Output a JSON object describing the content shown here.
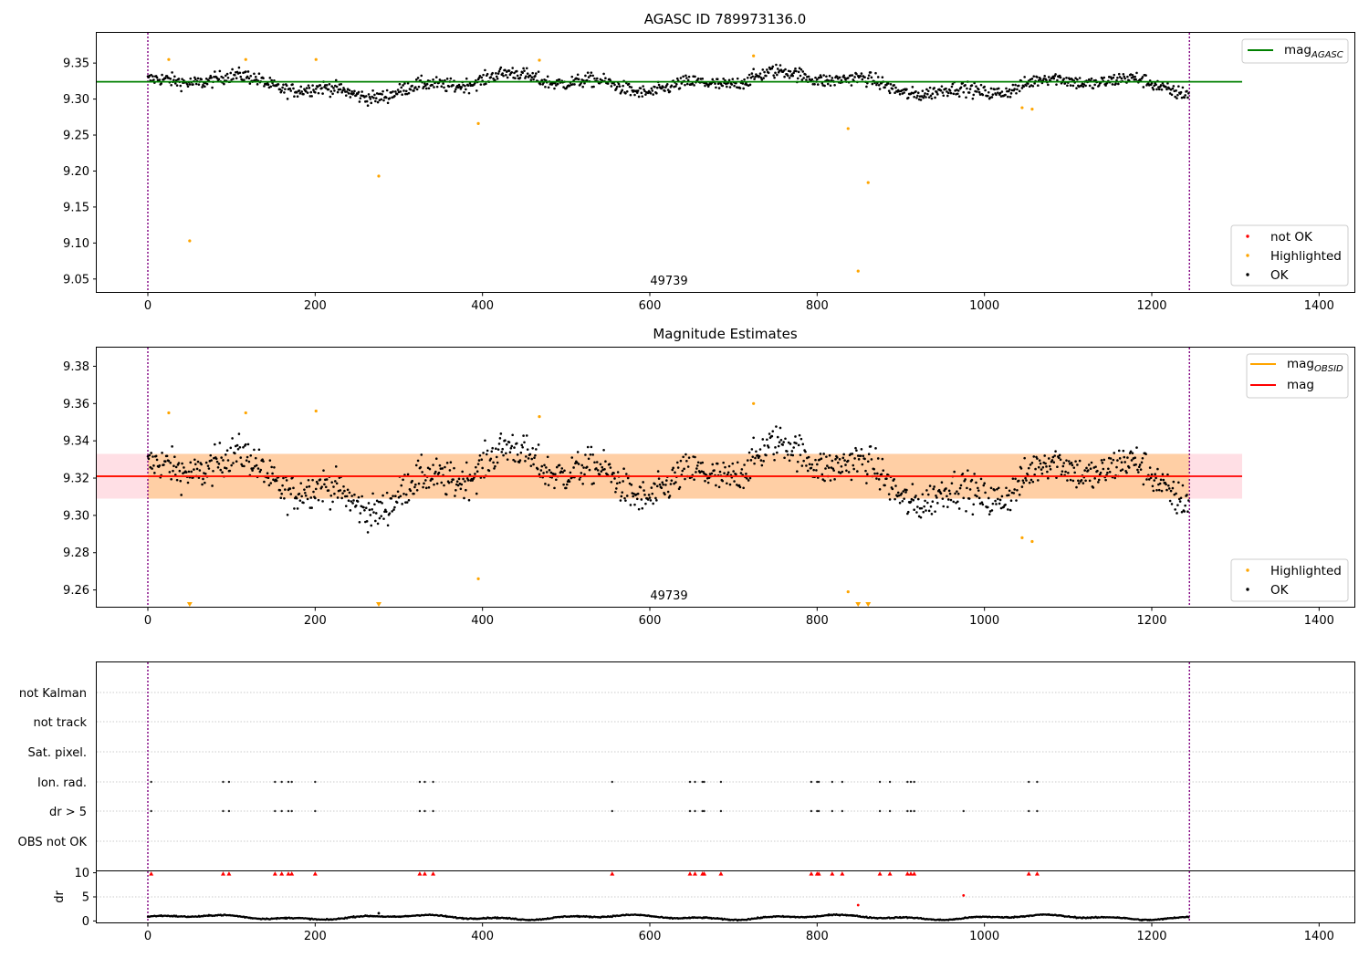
{
  "chart_data": [
    {
      "type": "scatter",
      "title": "AGASC ID 789973136.0",
      "xlim": [
        -62,
        1445
      ],
      "ylim": [
        9.032,
        9.392
      ],
      "xticks": [
        "0",
        "200",
        "400",
        "600",
        "800",
        "1000",
        "1200",
        "1400"
      ],
      "yticks": [
        "9.05",
        "9.10",
        "9.15",
        "9.20",
        "9.25",
        "9.30",
        "9.35"
      ],
      "annotation": "49739",
      "obs_bounds": [
        0,
        1245
      ],
      "mag_agasc": 9.324,
      "legend_lines": [
        {
          "label": "mag",
          "sub": "AGASC",
          "color": "#008000"
        }
      ],
      "legend_points": [
        {
          "label": "not OK",
          "color": "#ff0000"
        },
        {
          "label": "Highlighted",
          "color": "#ffa500"
        },
        {
          "label": "OK",
          "color": "#000000"
        }
      ],
      "ok_points": {
        "n": 1245,
        "band": [
          9.29,
          9.35
        ]
      },
      "highlighted_points": [
        {
          "x": 25,
          "y": 9.355
        },
        {
          "x": 50,
          "y": 9.103
        },
        {
          "x": 117,
          "y": 9.355
        },
        {
          "x": 201,
          "y": 9.355
        },
        {
          "x": 276,
          "y": 9.193
        },
        {
          "x": 395,
          "y": 9.266
        },
        {
          "x": 468,
          "y": 9.354
        },
        {
          "x": 724,
          "y": 9.36
        },
        {
          "x": 837,
          "y": 9.259
        },
        {
          "x": 849,
          "y": 9.061
        },
        {
          "x": 861,
          "y": 9.184
        },
        {
          "x": 1045,
          "y": 9.288
        },
        {
          "x": 1057,
          "y": 9.286
        }
      ]
    },
    {
      "type": "scatter",
      "title": "Magnitude Estimates",
      "xlim": [
        -62,
        1445
      ],
      "ylim": [
        9.251,
        9.39
      ],
      "xticks": [
        "0",
        "200",
        "400",
        "600",
        "800",
        "1000",
        "1200",
        "1400"
      ],
      "yticks": [
        "9.26",
        "9.28",
        "9.30",
        "9.32",
        "9.34",
        "9.36",
        "9.38"
      ],
      "annotation": "49739",
      "obs_bounds": [
        0,
        1245
      ],
      "mag": 9.321,
      "mag_band": [
        9.309,
        9.333
      ],
      "mag_obsid_band": [
        9.309,
        9.333
      ],
      "legend_lines": [
        {
          "label": "mag",
          "sub": "OBSID",
          "color": "#ffa500"
        },
        {
          "label": "mag",
          "sub": "",
          "color": "#ff0000"
        }
      ],
      "legend_points": [
        {
          "label": "Highlighted",
          "color": "#ffa500"
        },
        {
          "label": "OK",
          "color": "#000000"
        }
      ],
      "ok_points": {
        "n": 1245,
        "band": [
          9.29,
          9.35
        ]
      },
      "highlighted_points": [
        {
          "x": 25,
          "y": 9.355
        },
        {
          "x": 117,
          "y": 9.355
        },
        {
          "x": 201,
          "y": 9.356
        },
        {
          "x": 395,
          "y": 9.266
        },
        {
          "x": 468,
          "y": 9.353
        },
        {
          "x": 724,
          "y": 9.36
        },
        {
          "x": 837,
          "y": 9.259
        },
        {
          "x": 1045,
          "y": 9.288
        },
        {
          "x": 1057,
          "y": 9.286
        }
      ],
      "off_scale_points_x": [
        50,
        276,
        849,
        861
      ]
    },
    {
      "type": "scatter",
      "ylabels": [
        "not Kalman",
        "not track",
        "Sat. pixel.",
        "Ion. rad.",
        "dr > 5",
        "OBS not OK"
      ],
      "obs_bounds": [
        0,
        1245
      ],
      "xlim": [
        -62,
        1445
      ],
      "flag_x": [
        4,
        90,
        97,
        152,
        160,
        168,
        172,
        200,
        325,
        331,
        341,
        555,
        648,
        654,
        663,
        665,
        685,
        793,
        800,
        802,
        818,
        830,
        875,
        887,
        908,
        912,
        916,
        1053,
        1063
      ],
      "dr_only_x": [
        975
      ]
    },
    {
      "type": "scatter",
      "ylabel": "dr",
      "xlim": [
        -62,
        1445
      ],
      "ylim": [
        -0.3,
        10.3
      ],
      "yticks": [
        "0",
        "5",
        "10"
      ],
      "xticks": [
        "0",
        "200",
        "400",
        "600",
        "800",
        "1000",
        "1200",
        "1400"
      ],
      "clipped_x": [
        4,
        90,
        97,
        152,
        160,
        168,
        172,
        200,
        325,
        331,
        341,
        555,
        648,
        654,
        663,
        665,
        685,
        793,
        800,
        802,
        818,
        830,
        875,
        887,
        908,
        912,
        916,
        1053,
        1063
      ],
      "outliers": [
        {
          "x": 849,
          "y": 3.3
        },
        {
          "x": 975,
          "y": 5.3
        },
        {
          "x": 276,
          "y": 1.6
        }
      ]
    }
  ]
}
